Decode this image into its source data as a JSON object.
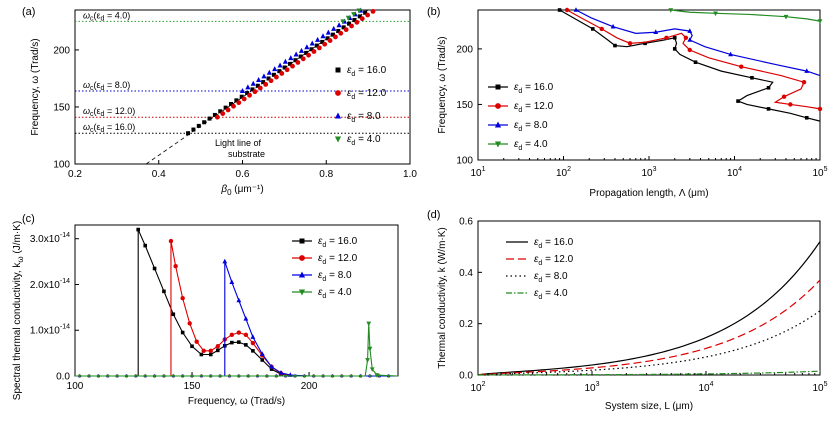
{
  "chart_data": [
    {
      "id": "a",
      "type": "scatter",
      "panel_label": "(a)",
      "xlabel_sym": "β",
      "xlabel_sub": "0",
      "xlabel_unit": "(μm⁻¹)",
      "ylabel": "Frequency, ω (Trad/s)",
      "xlim": [
        0.2,
        1.0
      ],
      "ylim": [
        100,
        235
      ],
      "xticks": [
        "0.2",
        "0.4",
        "0.6",
        "0.8",
        "1.0"
      ],
      "yticks": [
        "100",
        "150",
        "200"
      ],
      "light_line": {
        "x": [
          0.37,
          0.9
        ],
        "y": [
          100,
          235
        ]
      },
      "light_line_text": [
        "Light line of",
        "substrate"
      ],
      "cutoff_labels": [
        {
          "omega": "ω",
          "sub": "c",
          "text": "(ε",
          "sub2": "d",
          "rest": " = 4.0)",
          "y": 225,
          "color": "#2ca02c"
        },
        {
          "omega": "ω",
          "sub": "c",
          "text": "(ε",
          "sub2": "d",
          "rest": " = 8.0)",
          "y": 164,
          "color": "#0000cc"
        },
        {
          "omega": "ω",
          "sub": "c",
          "text": "(ε",
          "sub2": "d",
          "rest": " = 12.0)",
          "y": 141,
          "color": "#cc0000"
        },
        {
          "omega": "ω",
          "sub": "c",
          "text": "(ε",
          "sub2": "d",
          "rest": " = 16.0)",
          "y": 127,
          "color": "#000000"
        }
      ],
      "series": [
        {
          "name": "εd = 16.0",
          "label": "= 16.0",
          "color": "#000000",
          "marker": "square",
          "x_start": 0.47,
          "y_start": 127
        },
        {
          "name": "εd = 12.0",
          "label": "= 12.0",
          "color": "#dd0000",
          "marker": "circle",
          "x_start": 0.54,
          "y_start": 141
        },
        {
          "name": "εd = 8.0",
          "label": "= 8.0",
          "color": "#0000dd",
          "marker": "triangle-up",
          "x_start": 0.6,
          "y_start": 164
        },
        {
          "name": "εd = 4.0",
          "label": "= 4.0",
          "color": "#228b22",
          "marker": "triangle-down",
          "x_start": 0.84,
          "y_start": 225
        }
      ]
    },
    {
      "id": "b",
      "type": "line",
      "panel_label": "(b)",
      "xlabel": "Propagation length, Λ (μm)",
      "ylabel": "Frequency, ω (Trad/s)",
      "xscale": "log",
      "xlim": [
        10,
        100000
      ],
      "ylim": [
        100,
        235
      ],
      "xticks": [
        "10",
        "10",
        "10",
        "10",
        "10"
      ],
      "xtick_exp": [
        "1",
        "2",
        "3",
        "4",
        "5"
      ],
      "yticks": [
        "100",
        "150",
        "200"
      ],
      "series": [
        {
          "name": "εd = 16.0",
          "label": "= 16.0",
          "color": "#000000",
          "marker": "square",
          "points": [
            [
              90,
              235
            ],
            [
              130,
              228
            ],
            [
              220,
              218
            ],
            [
              330,
              208
            ],
            [
              400,
              203
            ],
            [
              550,
              202
            ],
            [
              900,
              205
            ],
            [
              1500,
              208
            ],
            [
              2000,
              210
            ],
            [
              2100,
              205
            ],
            [
              2000,
              200
            ],
            [
              2300,
              195
            ],
            [
              3500,
              188
            ],
            [
              7000,
              180
            ],
            [
              16000,
              174
            ],
            [
              28000,
              170
            ],
            [
              25000,
              165
            ],
            [
              14000,
              158
            ],
            [
              11000,
              153
            ],
            [
              14000,
              150
            ],
            [
              25000,
              146
            ],
            [
              45000,
              142
            ],
            [
              70000,
              138
            ],
            [
              100000,
              135
            ]
          ]
        },
        {
          "name": "εd = 12.0",
          "label": "= 12.0",
          "color": "#dd0000",
          "marker": "circle",
          "points": [
            [
              110,
              235
            ],
            [
              160,
              228
            ],
            [
              280,
              218
            ],
            [
              420,
              210
            ],
            [
              600,
              205
            ],
            [
              900,
              206
            ],
            [
              1600,
              210
            ],
            [
              2400,
              214
            ],
            [
              2700,
              210
            ],
            [
              2500,
              205
            ],
            [
              3000,
              199
            ],
            [
              5000,
              192
            ],
            [
              12000,
              184
            ],
            [
              35000,
              176
            ],
            [
              65000,
              170
            ],
            [
              60000,
              164
            ],
            [
              38000,
              157
            ],
            [
              30000,
              152
            ],
            [
              45000,
              150
            ],
            [
              70000,
              148
            ],
            [
              100000,
              146
            ]
          ]
        },
        {
          "name": "εd = 8.0",
          "label": "= 8.0",
          "color": "#0000dd",
          "marker": "triangle-up",
          "points": [
            [
              140,
              235
            ],
            [
              210,
              228
            ],
            [
              380,
              220
            ],
            [
              700,
              214
            ],
            [
              1200,
              215
            ],
            [
              2000,
              218
            ],
            [
              3000,
              216
            ],
            [
              3200,
              212
            ],
            [
              3000,
              208
            ],
            [
              4500,
              202
            ],
            [
              9000,
              195
            ],
            [
              30000,
              186
            ],
            [
              70000,
              180
            ],
            [
              100000,
              176
            ]
          ]
        },
        {
          "name": "εd = 4.0",
          "label": "= 4.0",
          "color": "#228b22",
          "marker": "triangle-down",
          "points": [
            [
              1800,
              235
            ],
            [
              3000,
              233
            ],
            [
              6000,
              232
            ],
            [
              15000,
              231
            ],
            [
              40000,
              229
            ],
            [
              70000,
              227
            ],
            [
              100000,
              225
            ]
          ]
        }
      ]
    },
    {
      "id": "c",
      "type": "line",
      "panel_label": "(c)",
      "xlabel": "Frequency, ω (Trad/s)",
      "ylabel": "Spectral thermal conductivity, k",
      "ylabel_sub": "ω",
      "ylabel_unit": "(J/m·K)",
      "xlim": [
        100,
        238
      ],
      "ylim": [
        0,
        3.3
      ],
      "xticks": [
        "100",
        "150",
        "200"
      ],
      "yticks": [
        "0.0",
        "1.0x10",
        "2.0x10",
        "3.0x10"
      ],
      "ytick_exp": "-14",
      "series": [
        {
          "name": "εd = 16.0",
          "label": "= 16.0",
          "color": "#000000",
          "marker": "square",
          "points": [
            [
              127,
              0
            ],
            [
              127,
              3.2
            ],
            [
              130,
              2.85
            ],
            [
              134,
              2.35
            ],
            [
              138,
              1.85
            ],
            [
              142,
              1.35
            ],
            [
              146,
              0.95
            ],
            [
              150,
              0.65
            ],
            [
              154,
              0.47
            ],
            [
              158,
              0.47
            ],
            [
              161,
              0.56
            ],
            [
              164,
              0.66
            ],
            [
              167,
              0.73
            ],
            [
              170,
              0.74
            ],
            [
              173,
              0.68
            ],
            [
              176,
              0.55
            ],
            [
              180,
              0.35
            ],
            [
              184,
              0.15
            ],
            [
              188,
              0.04
            ],
            [
              192,
              0.01
            ],
            [
              200,
              0
            ],
            [
              238,
              0
            ]
          ]
        },
        {
          "name": "εd = 12.0",
          "label": "= 12.0",
          "color": "#dd0000",
          "marker": "circle",
          "points": [
            [
              141,
              0
            ],
            [
              141,
              2.95
            ],
            [
              143,
              2.4
            ],
            [
              146,
              1.7
            ],
            [
              149,
              1.15
            ],
            [
              152,
              0.75
            ],
            [
              155,
              0.55
            ],
            [
              158,
              0.55
            ],
            [
              161,
              0.65
            ],
            [
              164,
              0.8
            ],
            [
              167,
              0.9
            ],
            [
              170,
              0.95
            ],
            [
              173,
              0.9
            ],
            [
              176,
              0.72
            ],
            [
              180,
              0.45
            ],
            [
              184,
              0.2
            ],
            [
              188,
              0.06
            ],
            [
              192,
              0.01
            ],
            [
              200,
              0
            ],
            [
              238,
              0
            ]
          ]
        },
        {
          "name": "εd = 8.0",
          "label": "= 8.0",
          "color": "#0000dd",
          "marker": "triangle-up",
          "points": [
            [
              100,
              0
            ],
            [
              164,
              0
            ],
            [
              164,
              2.5
            ],
            [
              167,
              2.05
            ],
            [
              170,
              1.65
            ],
            [
              173,
              1.25
            ],
            [
              176,
              0.85
            ],
            [
              180,
              0.48
            ],
            [
              184,
              0.2
            ],
            [
              188,
              0.07
            ],
            [
              192,
              0.02
            ],
            [
              200,
              0
            ],
            [
              238,
              0
            ]
          ]
        },
        {
          "name": "εd = 4.0",
          "label": "= 4.0",
          "color": "#228b22",
          "marker": "triangle-down",
          "points": [
            [
              100,
              0
            ],
            [
              224,
              0
            ],
            [
              225,
              0.35
            ],
            [
              225.5,
              1.15
            ],
            [
              226,
              0.6
            ],
            [
              227,
              0.15
            ],
            [
              229,
              0.02
            ],
            [
              238,
              0
            ]
          ]
        }
      ]
    },
    {
      "id": "d",
      "type": "line",
      "panel_label": "(d)",
      "xlabel": "System size, L (μm)",
      "ylabel": "Thermal conductivity, k (W/m·K)",
      "xscale": "log",
      "xlim": [
        100,
        100000
      ],
      "ylim": [
        0,
        0.6
      ],
      "xticks": [
        "10",
        "10",
        "10",
        "10"
      ],
      "xtick_exp": [
        "2",
        "3",
        "4",
        "5"
      ],
      "yticks": [
        "0.0",
        "0.2",
        "0.4",
        "0.6"
      ],
      "series": [
        {
          "name": "εd = 16.0",
          "label": "= 16.0",
          "color": "#000000",
          "dash": "",
          "final": 0.52
        },
        {
          "name": "εd = 12.0",
          "label": "= 12.0",
          "color": "#dd0000",
          "dash": "8,4",
          "final": 0.37
        },
        {
          "name": "εd = 8.0",
          "label": "= 8.0",
          "color": "#000000",
          "dash": "1.5,3",
          "final": 0.25
        },
        {
          "name": "εd = 4.0",
          "label": "= 4.0",
          "color": "#228b22",
          "dash": "6,2,1.5,2",
          "final": 0.015
        }
      ]
    }
  ]
}
